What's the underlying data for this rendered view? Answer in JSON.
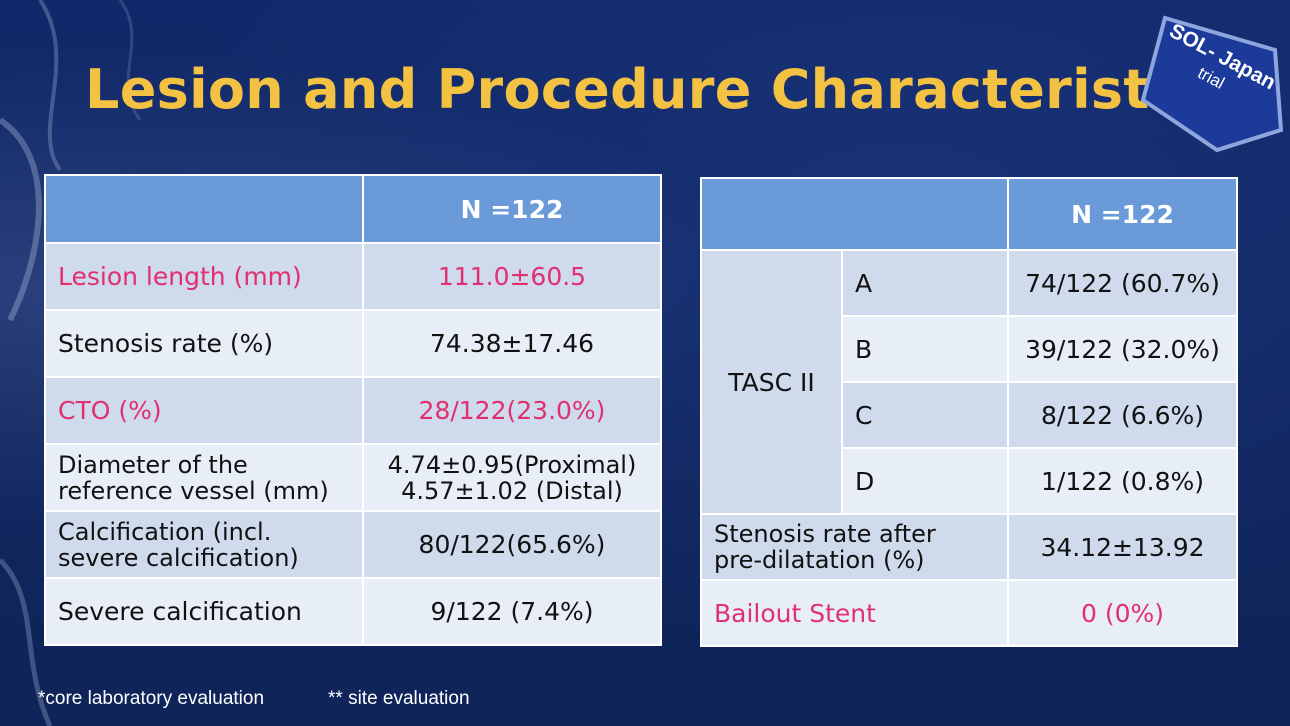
{
  "title": "Lesion and Procedure Characteristics",
  "badge": {
    "line1": "SOL- Japan",
    "line2": "trial"
  },
  "table_left": {
    "header": {
      "col1": "",
      "col2": "N =122"
    },
    "rows": [
      {
        "label": "Lesion length (mm)",
        "value": "111.0±60.5",
        "highlight": true
      },
      {
        "label": "Stenosis rate (%)",
        "value": "74.38±17.46",
        "highlight": false
      },
      {
        "label": "CTO (%)",
        "value": "28/122(23.0%)",
        "highlight": true
      },
      {
        "label_line1": "Diameter of the",
        "label_line2": "reference vessel (mm)",
        "value_line1": "4.74±0.95(Proximal)",
        "value_line2": "4.57±1.02 (Distal)",
        "highlight": false
      },
      {
        "label_line1": "Calcification (incl.",
        "label_line2": "severe calcification)",
        "value": "80/122(65.6%)",
        "highlight": false
      },
      {
        "label": "Severe calcification",
        "value": "9/122 (7.4%)",
        "highlight": false
      }
    ]
  },
  "table_right": {
    "header": {
      "col1": "",
      "col2": "N =122"
    },
    "tasc_label": "TASC II",
    "tasc_rows": [
      {
        "grade": "A",
        "value": "74/122 (60.7%)"
      },
      {
        "grade": "B",
        "value": "39/122 (32.0%)"
      },
      {
        "grade": "C",
        "value": "8/122 (6.6%)"
      },
      {
        "grade": "D",
        "value": "1/122 (0.8%)"
      }
    ],
    "stenosis_after": {
      "label_line1": "Stenosis rate after",
      "label_line2": "pre-dilatation (%)",
      "value": "34.12±13.92"
    },
    "bailout": {
      "label": "Bailout Stent",
      "value": "0 (0%)"
    }
  },
  "footnotes": {
    "core": "*core laboratory evaluation",
    "site": "** site evaluation"
  },
  "colors": {
    "background": "#10265f",
    "title": "#f4c242",
    "header": "#6a9ad8",
    "highlight": "#e0306f"
  }
}
